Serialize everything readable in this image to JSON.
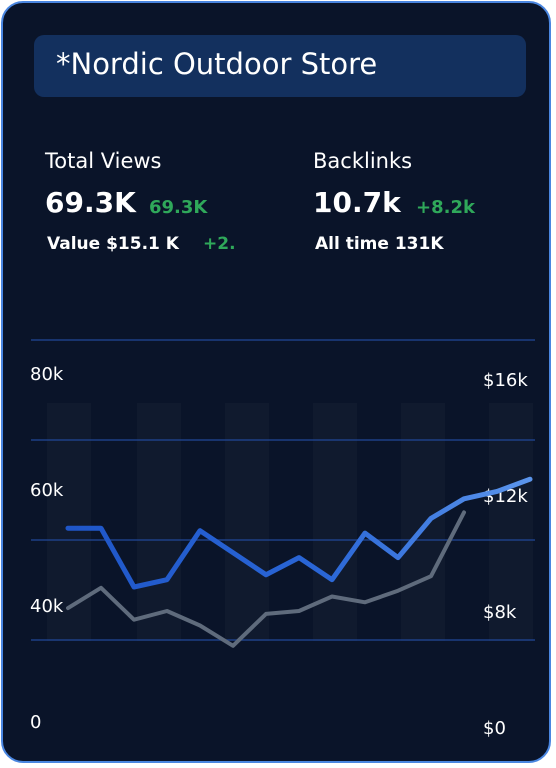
{
  "card": {
    "title": "*Nordic Outdoor Store",
    "stats": [
      {
        "label": "Total Views",
        "value": "69.3K",
        "delta": "69.3K",
        "sub": "Value $15.1 K",
        "sub_delta": "+2."
      },
      {
        "label": "Backlinks",
        "value": "10.7k",
        "delta": "+8.2k",
        "sub": "All time 131K",
        "sub_delta": ""
      }
    ]
  },
  "colors": {
    "background": "#0a1429",
    "border": "#4a86e0",
    "title_bar": "#13305e",
    "positive": "#2fa85a",
    "line_primary_start": "#1f56c8",
    "line_primary_end": "#5b95ec",
    "line_secondary": "#5f6b7c",
    "gridline": "#1d3f86"
  },
  "chart_data": {
    "type": "line",
    "x": [
      1,
      2,
      3,
      4,
      5,
      6,
      7,
      8,
      9,
      10,
      11,
      12,
      13,
      14,
      15
    ],
    "series": [
      {
        "axis": "left",
        "values": [
          52,
          52,
          40,
          41.5,
          51.5,
          47,
          42.5,
          46,
          41.5,
          51,
          46,
          54,
          58,
          59.5,
          62
        ],
        "color": "#3b7be0"
      },
      {
        "axis": "right",
        "values": [
          8.1,
          8.8,
          7.7,
          8.0,
          7.5,
          6.8,
          7.9,
          8.0,
          8.5,
          8.3,
          8.7,
          9.2,
          11.4
        ],
        "x": [
          1,
          2,
          3,
          4,
          5,
          6,
          7,
          8,
          9,
          10,
          11,
          12,
          13
        ],
        "color": "#5f6b7c"
      }
    ],
    "y_left": {
      "ticks": [
        "0",
        "40k",
        "60k",
        "80k"
      ]
    },
    "y_right": {
      "ticks": [
        "$0",
        "$8k",
        "$12k",
        "$16k"
      ]
    },
    "grid": true,
    "legend": "none"
  }
}
